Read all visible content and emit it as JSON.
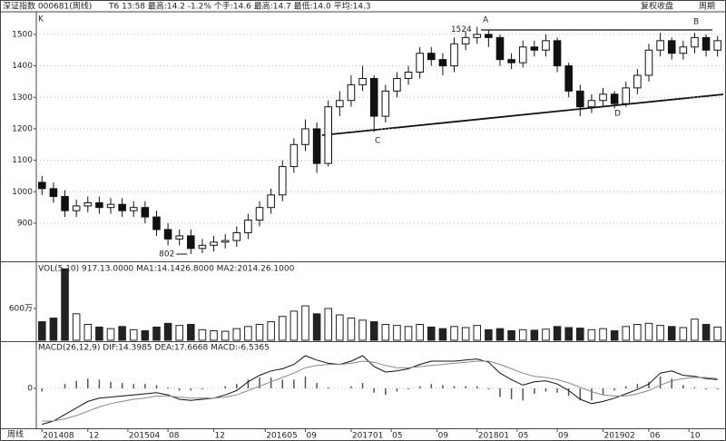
{
  "chart_data": [
    {
      "type": "candlestick",
      "title": "深证指数 000681(周线)",
      "subtitle": "T6 13:58 最高:14.2 -1.2% 个手:14.6 最高:14.7 最低:14.0 平均:14.3",
      "corner_label": "复权收盘",
      "period_label": "周期",
      "y_label": "K",
      "open": [
        1030,
        1010,
        985,
        940,
        955,
        965,
        950,
        960,
        940,
        950,
        920,
        880,
        850,
        860,
        820,
        830,
        840,
        845,
        870,
        910,
        950,
        990,
        1080,
        1150,
        1200,
        1090,
        1270,
        1290,
        1340,
        1360,
        1240,
        1320,
        1360,
        1380,
        1440,
        1420,
        1400,
        1470,
        1490,
        1500,
        1490,
        1420,
        1410,
        1460,
        1450,
        1480,
        1400,
        1320,
        1270,
        1290,
        1310,
        1280,
        1330,
        1370,
        1450,
        1480,
        1440,
        1460,
        1490,
        1450
      ],
      "high": [
        1050,
        1030,
        1005,
        975,
        985,
        985,
        980,
        980,
        970,
        970,
        940,
        900,
        880,
        880,
        850,
        860,
        865,
        890,
        930,
        970,
        1010,
        1100,
        1170,
        1230,
        1220,
        1290,
        1320,
        1370,
        1400,
        1370,
        1340,
        1380,
        1400,
        1460,
        1460,
        1440,
        1490,
        1510,
        1524,
        1515,
        1500,
        1440,
        1480,
        1480,
        1500,
        1490,
        1410,
        1340,
        1310,
        1330,
        1320,
        1350,
        1390,
        1470,
        1505,
        1490,
        1480,
        1505,
        1500,
        1495
      ],
      "low": [
        990,
        965,
        920,
        920,
        935,
        930,
        930,
        920,
        920,
        900,
        860,
        830,
        830,
        802,
        805,
        810,
        820,
        825,
        850,
        890,
        930,
        970,
        1060,
        1130,
        1060,
        1080,
        1240,
        1270,
        1320,
        1190,
        1220,
        1300,
        1340,
        1360,
        1400,
        1370,
        1380,
        1450,
        1470,
        1460,
        1400,
        1390,
        1395,
        1430,
        1430,
        1380,
        1300,
        1240,
        1250,
        1270,
        1265,
        1270,
        1310,
        1350,
        1430,
        1420,
        1420,
        1440,
        1430,
        1430
      ],
      "close": [
        1010,
        985,
        940,
        955,
        965,
        950,
        960,
        940,
        950,
        920,
        880,
        850,
        860,
        820,
        830,
        840,
        845,
        870,
        910,
        950,
        990,
        1080,
        1150,
        1200,
        1090,
        1270,
        1290,
        1340,
        1360,
        1240,
        1320,
        1360,
        1380,
        1440,
        1420,
        1400,
        1470,
        1490,
        1500,
        1490,
        1420,
        1410,
        1460,
        1450,
        1480,
        1400,
        1320,
        1270,
        1290,
        1310,
        1280,
        1330,
        1370,
        1450,
        1480,
        1440,
        1460,
        1490,
        1450,
        1480
      ],
      "xlim": [
        -0.5,
        59.5
      ],
      "ylim": [
        779,
        1566
      ],
      "yticks": [
        900,
        1000,
        1100,
        1200,
        1300,
        1400,
        1500
      ],
      "annotations": {
        "peak": 1524,
        "trough": 802,
        "a": "A",
        "b": "B",
        "c": "C",
        "d": "D"
      }
    },
    {
      "type": "bar",
      "title": "VOL(5,10) 917.13.0000 MA1:14.1426.8000 MA2:2014.26.1000",
      "values": [
        350,
        420,
        1350,
        500,
        300,
        250,
        220,
        260,
        200,
        180,
        250,
        320,
        280,
        300,
        200,
        180,
        170,
        220,
        260,
        300,
        350,
        450,
        550,
        650,
        500,
        600,
        480,
        420,
        380,
        350,
        300,
        280,
        260,
        300,
        250,
        220,
        260,
        240,
        280,
        200,
        220,
        180,
        200,
        190,
        210,
        260,
        240,
        230,
        200,
        220,
        180,
        260,
        300,
        320,
        280,
        260,
        240,
        400,
        300,
        250
      ],
      "ylim": [
        0,
        1457
      ],
      "yticks": [
        {
          "value": 600,
          "label": "600万"
        }
      ]
    },
    {
      "type": "macd",
      "title": "MACD(26,12,9) DIF:14.3985 DEA:17.6668 MACD:-6.5365",
      "series": [
        {
          "color": "#111",
          "values": [
            -33,
            -30,
            -24,
            -18,
            -12,
            -9,
            -8,
            -7,
            -6,
            -5,
            -4,
            -6,
            -10,
            -11,
            -10,
            -9,
            -6,
            -2,
            6,
            12,
            16,
            18,
            22,
            30,
            26,
            23,
            22,
            25,
            30,
            20,
            15,
            16,
            18,
            22,
            25,
            25,
            25,
            26,
            27,
            24,
            14,
            8,
            3,
            6,
            7,
            4,
            -2,
            -10,
            -14,
            -12,
            -9,
            -5,
            -1,
            4,
            14,
            16,
            12,
            11,
            9,
            8
          ]
        },
        {
          "color": "#888",
          "values": [
            -30,
            -30,
            -28,
            -25,
            -21,
            -17,
            -14,
            -12,
            -10,
            -9,
            -7,
            -7,
            -8,
            -9,
            -9,
            -9,
            -8,
            -6,
            -2,
            2,
            6,
            10,
            14,
            19,
            21,
            22,
            22,
            23,
            25,
            24,
            21,
            19,
            19,
            20,
            21,
            22,
            23,
            24,
            25,
            25,
            22,
            18,
            14,
            11,
            10,
            8,
            5,
            1,
            -3,
            -6,
            -7,
            -7,
            -5,
            -2,
            3,
            7,
            9,
            10,
            10,
            9
          ]
        }
      ],
      "histogram": {
        "color": "#555",
        "values": [
          -3,
          0,
          4,
          7,
          9,
          8,
          6,
          5,
          4,
          4,
          3,
          1,
          -2,
          -2,
          -1,
          0,
          2,
          4,
          8,
          10,
          10,
          8,
          8,
          11,
          5,
          1,
          0,
          2,
          5,
          -4,
          -6,
          -3,
          -1,
          2,
          4,
          3,
          2,
          2,
          2,
          -1,
          -8,
          -10,
          -11,
          -5,
          -3,
          -4,
          -7,
          -11,
          -11,
          -6,
          -2,
          2,
          4,
          6,
          11,
          9,
          3,
          1,
          -1,
          -1
        ]
      },
      "ylim": [
        -36.7,
        42.5
      ],
      "yticks": [
        0
      ],
      "x_label": "周线",
      "xticks": [
        {
          "value": 0,
          "label": "201408"
        },
        {
          "value": 4,
          "label": "12"
        },
        {
          "value": 7.5,
          "label": "201504"
        },
        {
          "value": 11,
          "label": "08"
        },
        {
          "value": 15,
          "label": "12"
        },
        {
          "value": 19.5,
          "label": "201605"
        },
        {
          "value": 23,
          "label": "09"
        },
        {
          "value": 27,
          "label": "201701"
        },
        {
          "value": 30.5,
          "label": "05"
        },
        {
          "value": 34.5,
          "label": "09"
        },
        {
          "value": 38,
          "label": "201801"
        },
        {
          "value": 41.5,
          "label": "05"
        },
        {
          "value": 45,
          "label": "09"
        },
        {
          "value": 49,
          "label": "201902"
        },
        {
          "value": 53,
          "label": "06"
        },
        {
          "value": 56.5,
          "label": "10"
        }
      ]
    }
  ]
}
